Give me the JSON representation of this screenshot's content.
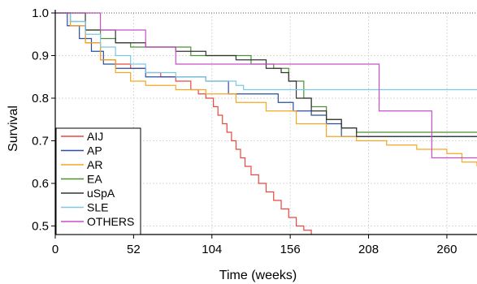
{
  "chart_data": {
    "type": "line",
    "xlabel": "Time (weeks)",
    "ylabel": "Survival",
    "xlim": [
      0,
      280
    ],
    "ylim": [
      0.48,
      1.0
    ],
    "xticks": [
      0,
      52,
      104,
      156,
      208,
      260
    ],
    "yticks": [
      0.5,
      0.6,
      0.7,
      0.8,
      0.9,
      1.0
    ],
    "grid": true,
    "legend_position": "bottom-left",
    "reference_line": 1.0,
    "series": [
      {
        "name": "AIJ",
        "color": "#e8483f",
        "step": true,
        "x": [
          0,
          10,
          20,
          30,
          40,
          50,
          60,
          70,
          80,
          90,
          95,
          100,
          105,
          108,
          111,
          114,
          117,
          120,
          123,
          126,
          130,
          135,
          140,
          145,
          150,
          155,
          160,
          165,
          170
        ],
        "y": [
          1.0,
          0.97,
          0.93,
          0.89,
          0.88,
          0.87,
          0.86,
          0.85,
          0.84,
          0.82,
          0.81,
          0.8,
          0.78,
          0.76,
          0.74,
          0.72,
          0.7,
          0.68,
          0.66,
          0.64,
          0.62,
          0.6,
          0.58,
          0.56,
          0.54,
          0.52,
          0.5,
          0.49,
          0.48
        ]
      },
      {
        "name": "AP",
        "color": "#2a4ea0",
        "step": true,
        "x": [
          0,
          8,
          16,
          24,
          32,
          40,
          60,
          80,
          100,
          115,
          135,
          148,
          158,
          170,
          180,
          190,
          200,
          280
        ],
        "y": [
          1.0,
          0.97,
          0.94,
          0.91,
          0.88,
          0.87,
          0.85,
          0.85,
          0.84,
          0.81,
          0.81,
          0.79,
          0.77,
          0.76,
          0.74,
          0.71,
          0.71,
          0.71
        ]
      },
      {
        "name": "AR",
        "color": "#f5a623",
        "step": true,
        "x": [
          0,
          10,
          20,
          30,
          40,
          50,
          60,
          80,
          100,
          120,
          140,
          160,
          180,
          200,
          220,
          240,
          260,
          270,
          280
        ],
        "y": [
          1.0,
          0.97,
          0.93,
          0.89,
          0.86,
          0.84,
          0.83,
          0.82,
          0.81,
          0.79,
          0.77,
          0.74,
          0.71,
          0.7,
          0.69,
          0.68,
          0.67,
          0.65,
          0.64
        ]
      },
      {
        "name": "EA",
        "color": "#4c8f36",
        "step": true,
        "x": [
          0,
          10,
          20,
          30,
          40,
          50,
          60,
          75,
          90,
          110,
          130,
          145,
          155,
          165,
          170,
          180,
          190,
          200,
          280
        ],
        "y": [
          1.0,
          0.98,
          0.96,
          0.94,
          0.93,
          0.92,
          0.92,
          0.92,
          0.9,
          0.9,
          0.88,
          0.87,
          0.84,
          0.8,
          0.78,
          0.75,
          0.73,
          0.72,
          0.72
        ]
      },
      {
        "name": "uSpA",
        "color": "#333333",
        "step": true,
        "x": [
          0,
          20,
          40,
          60,
          80,
          100,
          120,
          140,
          150,
          155,
          160,
          170,
          180,
          190,
          200,
          280
        ],
        "y": [
          1.0,
          0.96,
          0.93,
          0.92,
          0.91,
          0.9,
          0.89,
          0.87,
          0.86,
          0.84,
          0.8,
          0.77,
          0.75,
          0.73,
          0.71,
          0.71
        ]
      },
      {
        "name": "SLE",
        "color": "#7ec8e3",
        "step": true,
        "x": [
          0,
          10,
          20,
          30,
          40,
          50,
          60,
          80,
          100,
          120,
          125,
          280
        ],
        "y": [
          1.0,
          0.98,
          0.95,
          0.92,
          0.9,
          0.88,
          0.86,
          0.85,
          0.84,
          0.83,
          0.82,
          0.82
        ]
      },
      {
        "name": "OTHERS",
        "color": "#c84fc8",
        "step": true,
        "x": [
          0,
          30,
          60,
          80,
          100,
          120,
          150,
          180,
          215,
          250,
          260,
          280
        ],
        "y": [
          1.0,
          0.96,
          0.92,
          0.88,
          0.88,
          0.88,
          0.88,
          0.88,
          0.77,
          0.66,
          0.66,
          0.66
        ]
      }
    ]
  }
}
